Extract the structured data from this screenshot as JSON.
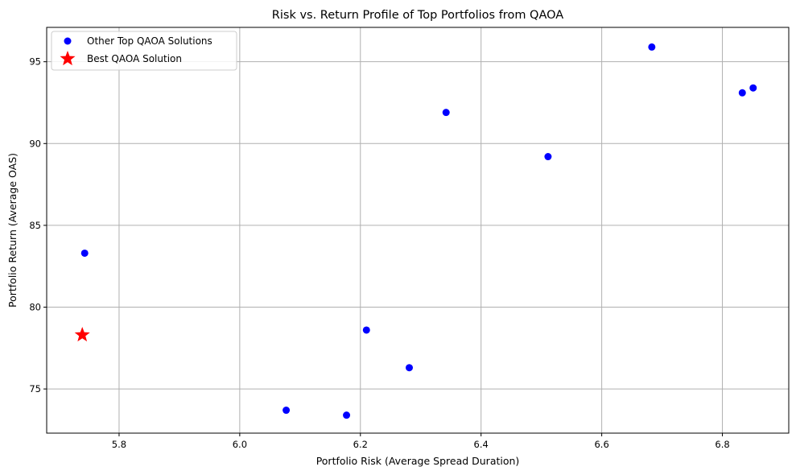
{
  "chart_data": {
    "type": "scatter",
    "title": "Risk vs. Return Profile of Top Portfolios from QAOA",
    "xlabel": "Portfolio Risk (Average Spread Duration)",
    "ylabel": "Portfolio Return (Average OAS)",
    "xlim": [
      5.68,
      6.91
    ],
    "ylim": [
      72.3,
      97.1
    ],
    "xticks": [
      5.8,
      6.0,
      6.2,
      6.4,
      6.6,
      6.8
    ],
    "xtick_labels": [
      "5.8",
      "6.0",
      "6.2",
      "6.4",
      "6.6",
      "6.8"
    ],
    "yticks": [
      75,
      80,
      85,
      90,
      95
    ],
    "ytick_labels": [
      "75",
      "80",
      "85",
      "90",
      "95"
    ],
    "grid": true,
    "legend_position": "top-left",
    "series": [
      {
        "name": "Other Top QAOA Solutions",
        "marker": "circle",
        "color": "#0000ff",
        "points": [
          {
            "x": 5.743,
            "y": 83.3
          },
          {
            "x": 6.077,
            "y": 73.7
          },
          {
            "x": 6.177,
            "y": 73.4
          },
          {
            "x": 6.21,
            "y": 78.6
          },
          {
            "x": 6.281,
            "y": 76.3
          },
          {
            "x": 6.342,
            "y": 91.9
          },
          {
            "x": 6.511,
            "y": 89.2
          },
          {
            "x": 6.683,
            "y": 95.9
          },
          {
            "x": 6.833,
            "y": 93.1
          },
          {
            "x": 6.851,
            "y": 93.4
          }
        ]
      },
      {
        "name": "Best QAOA Solution",
        "marker": "star",
        "color": "#ff0000",
        "points": [
          {
            "x": 5.739,
            "y": 78.3
          }
        ]
      }
    ]
  }
}
